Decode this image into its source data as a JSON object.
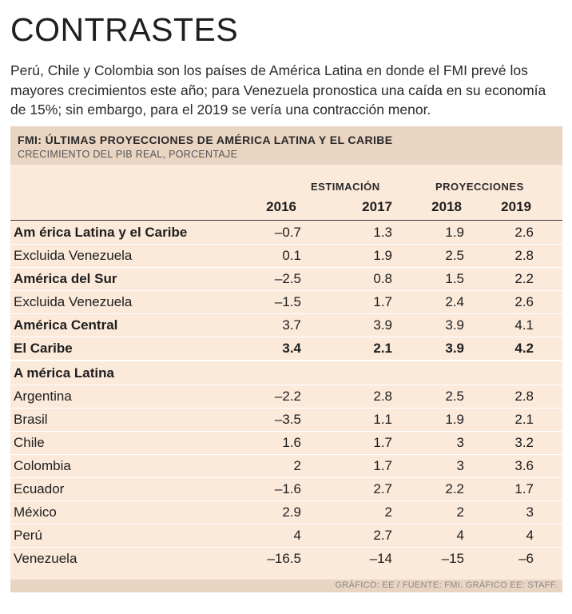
{
  "headline": "CONTRASTES",
  "intro": "Perú, Chile y Colombia son los países de América Latina en donde el FMI prevé los mayores crecimientos este año; para Venezuela pronostica una caída en su economía de 15%; sin embargo, para el 2019 se vería una contracción menor.",
  "chart_data": {
    "type": "table",
    "title": "FMI: ÚLTIMAS PROYECCIONES DE AMÉRICA LATINA Y EL CARIBE",
    "subtitle": "CRECIMIENTO DEL PIB REAL, PORCENTAJE",
    "column_groups": {
      "estimacion": "ESTIMACIÓN",
      "proyecciones": "PROYECCIONES"
    },
    "columns": [
      "2016",
      "2017",
      "2018",
      "2019"
    ],
    "rows": [
      {
        "label": "Am érica Latina y el Caribe",
        "values": [
          "–0.7",
          "1.3",
          "1.9",
          "2.6"
        ]
      },
      {
        "label": "Excluida Venezuela",
        "values": [
          "0.1",
          "1.9",
          "2.5",
          "2.8"
        ]
      },
      {
        "label": "América del Sur",
        "values": [
          "–2.5",
          "0.8",
          "1.5",
          "2.2"
        ]
      },
      {
        "label": "Excluida Venezuela",
        "values": [
          "–1.5",
          "1.7",
          "2.4",
          "2.6"
        ]
      },
      {
        "label": "América Central",
        "values": [
          "3.7",
          "3.9",
          "3.9",
          "4.1"
        ]
      },
      {
        "label": "El Caribe",
        "values": [
          "3.4",
          "2.1",
          "3.9",
          "4.2"
        ]
      },
      {
        "label": "A mérica Latina",
        "values": [
          "",
          "",
          "",
          ""
        ]
      },
      {
        "label": "Argentina",
        "values": [
          "–2.2",
          "2.8",
          "2.5",
          "2.8"
        ]
      },
      {
        "label": "Brasil",
        "values": [
          "–3.5",
          "1.1",
          "1.9",
          "2.1"
        ]
      },
      {
        "label": "Chile",
        "values": [
          "1.6",
          "1.7",
          "3",
          "3.2"
        ]
      },
      {
        "label": "Colombia",
        "values": [
          "2",
          "1.7",
          "3",
          "3.6"
        ]
      },
      {
        "label": "Ecuador",
        "values": [
          "–1.6",
          "2.7",
          "2.2",
          "1.7"
        ]
      },
      {
        "label": "México",
        "values": [
          "2.9",
          "2",
          "2",
          "3"
        ]
      },
      {
        "label": "Perú",
        "values": [
          "4",
          "2.7",
          "4",
          "4"
        ]
      },
      {
        "label": "Venezuela",
        "values": [
          "–16.5",
          "–14",
          "–15",
          "–6"
        ]
      }
    ]
  },
  "footer": "GRÁFICO: EE / FUENTE: FMI.   GRÁFICO EE: STAFF."
}
